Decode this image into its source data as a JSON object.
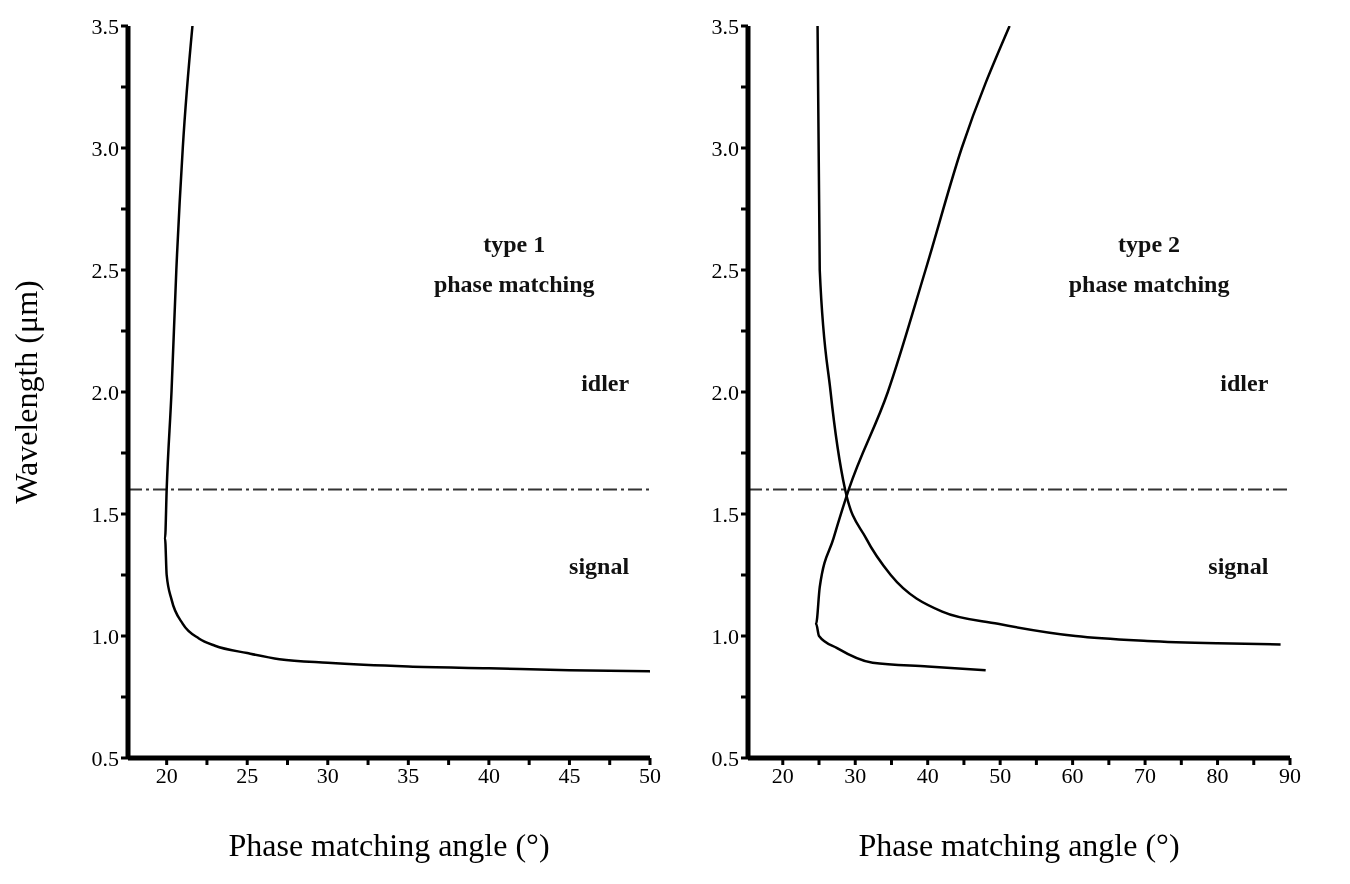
{
  "chart_data": [
    {
      "type": "line",
      "xlabel": "Phase matching angle (°)",
      "ylabel": "Wavelength (μm)",
      "xlim": [
        17.6,
        50
      ],
      "ylim": [
        0.5,
        3.5
      ],
      "xticks": [
        20,
        {
          "value": 22.5,
          "label": null
        },
        25,
        {
          "value": 27.5,
          "label": null
        },
        30,
        {
          "value": 32.5,
          "label": null
        },
        35,
        {
          "value": 37.5,
          "label": null
        },
        40,
        {
          "value": 42.5,
          "label": null
        },
        45,
        {
          "value": 47.5,
          "label": null
        },
        50
      ],
      "yticks": [
        {
          "value": 0.5,
          "label": "0.5"
        },
        {
          "value": 0.75,
          "label": null
        },
        {
          "value": 1.0,
          "label": "1.0"
        },
        {
          "value": 1.25,
          "label": null
        },
        {
          "value": 1.5,
          "label": "1.5"
        },
        {
          "value": 1.75,
          "label": null
        },
        {
          "value": 2.0,
          "label": "2.0"
        },
        {
          "value": 2.25,
          "label": null
        },
        {
          "value": 2.5,
          "label": "2.5"
        },
        {
          "value": 2.75,
          "label": null
        },
        {
          "value": 3.0,
          "label": "3.0"
        },
        {
          "value": 3.25,
          "label": null
        },
        {
          "value": 3.5,
          "label": "3.5"
        }
      ],
      "marker": "none",
      "line_style": "solid",
      "series": [
        {
          "color": "#000000",
          "x": [
            21.6,
            21.0,
            20.6,
            20.3,
            20.0,
            19.9,
            20.0,
            20.3,
            21.0,
            22.0,
            23.0,
            25.0,
            27.0,
            30.0,
            35.0,
            40.0,
            45.0,
            50.0
          ],
          "values": [
            3.5,
            3.0,
            2.5,
            2.0,
            1.6,
            1.4,
            1.25,
            1.15,
            1.05,
            0.99,
            0.96,
            0.93,
            0.905,
            0.89,
            0.875,
            0.868,
            0.86,
            0.855
          ]
        }
      ],
      "ref_lines": [
        {
          "axis": "y",
          "value": 1.6,
          "color": "#333333",
          "line_style": "dashdot"
        }
      ],
      "annotations": [
        "type 1\nphase matching",
        "idler",
        "signal"
      ]
    },
    {
      "type": "line",
      "xlabel": "Phase matching angle (°)",
      "xlim": [
        15.2,
        90
      ],
      "ylim": [
        0.5,
        3.5
      ],
      "xticks": [
        20,
        {
          "value": 25,
          "label": null
        },
        30,
        {
          "value": 35,
          "label": null
        },
        40,
        {
          "value": 45,
          "label": null
        },
        50,
        {
          "value": 55,
          "label": null
        },
        60,
        {
          "value": 65,
          "label": null
        },
        70,
        {
          "value": 75,
          "label": null
        },
        80,
        {
          "value": 85,
          "label": null
        },
        90
      ],
      "yticks": [
        {
          "value": 0.5,
          "label": "0.5"
        },
        {
          "value": 0.75,
          "label": null
        },
        {
          "value": 1.0,
          "label": "1.0"
        },
        {
          "value": 1.25,
          "label": null
        },
        {
          "value": 1.5,
          "label": "1.5"
        },
        {
          "value": 1.75,
          "label": null
        },
        {
          "value": 2.0,
          "label": "2.0"
        },
        {
          "value": 2.25,
          "label": null
        },
        {
          "value": 2.5,
          "label": "2.5"
        },
        {
          "value": 2.75,
          "label": null
        },
        {
          "value": 3.0,
          "label": "3.0"
        },
        {
          "value": 3.25,
          "label": null
        },
        {
          "value": 3.5,
          "label": "3.5"
        }
      ],
      "marker": "none",
      "line_style": "solid",
      "series": [
        {
          "color": "#000000",
          "x": [
            24.8,
            25.1,
            26.6,
            28.6,
            31.5,
            34.9,
            42.0,
            49.7,
            60.4,
            70.3,
            80.0,
            88.7
          ],
          "values": [
            3.5,
            2.5,
            2.0,
            1.6,
            1.4,
            1.25,
            1.1,
            1.05,
            1.0,
            0.98,
            0.97,
            0.965
          ]
        },
        {
          "color": "#000000",
          "x": [
            51.3,
            44.7,
            39.7,
            34.5,
            29.1,
            27.0,
            25.1,
            24.6,
            25.0,
            27.5,
            32.4,
            40.0,
            48.0
          ],
          "values": [
            3.5,
            3.0,
            2.5,
            2.0,
            1.6,
            1.4,
            1.2,
            1.05,
            1.0,
            0.95,
            0.89,
            0.875,
            0.86
          ]
        }
      ],
      "ref_lines": [
        {
          "axis": "y",
          "value": 1.6,
          "color": "#333333",
          "line_style": "dashdot"
        }
      ],
      "annotations": [
        "type 2\nphase matching",
        "idler",
        "signal"
      ]
    }
  ]
}
